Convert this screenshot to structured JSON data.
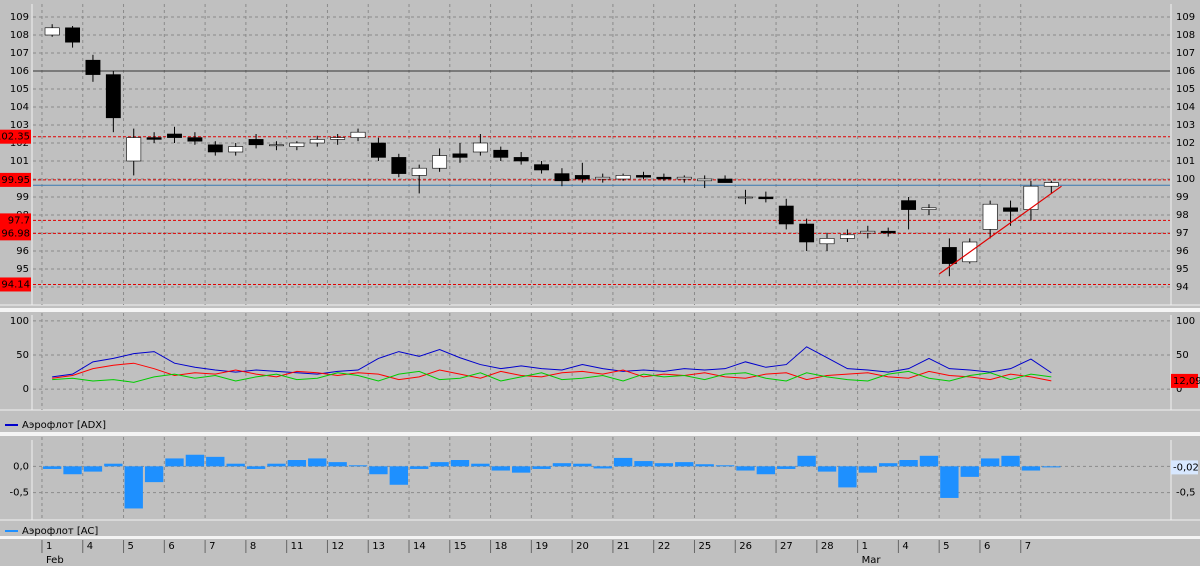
{
  "x": [
    0.25,
    0.75,
    1.25,
    1.75,
    2.25,
    2.75,
    3.25,
    3.75,
    4.25,
    4.75,
    5.25,
    5.75,
    6.25,
    6.75,
    7.25,
    7.75,
    8.25,
    8.75,
    9.25,
    9.75,
    10.25,
    10.75,
    11.25,
    11.75,
    12.25,
    12.75,
    13.25,
    13.75,
    14.25,
    14.75,
    15.25,
    15.75,
    16.25,
    16.75,
    17.25,
    17.75,
    18.25,
    18.75,
    19.25,
    19.75,
    20.25,
    20.75,
    21.25,
    21.75,
    22.25,
    22.75,
    23.25,
    23.75,
    24.25,
    24.75
  ],
  "x_axis": {
    "xlim": [
      -0.22,
      27.66
    ],
    "xticks": [
      {
        "value": 0,
        "label": "1"
      },
      {
        "value": 1,
        "label": "4"
      },
      {
        "value": 2,
        "label": "5"
      },
      {
        "value": 3,
        "label": "6"
      },
      {
        "value": 4,
        "label": "7"
      },
      {
        "value": 5,
        "label": "8"
      },
      {
        "value": 6,
        "label": "11"
      },
      {
        "value": 7,
        "label": "12"
      },
      {
        "value": 8,
        "label": "13"
      },
      {
        "value": 9,
        "label": "14"
      },
      {
        "value": 10,
        "label": "15"
      },
      {
        "value": 11,
        "label": "18"
      },
      {
        "value": 12,
        "label": "19"
      },
      {
        "value": 13,
        "label": "20"
      },
      {
        "value": 14,
        "label": "21"
      },
      {
        "value": 15,
        "label": "22"
      },
      {
        "value": 16,
        "label": "25"
      },
      {
        "value": 17,
        "label": "26"
      },
      {
        "value": 18,
        "label": "27"
      },
      {
        "value": 19,
        "label": "28"
      },
      {
        "value": 20,
        "label": "1"
      },
      {
        "value": 21,
        "label": "4"
      },
      {
        "value": 22,
        "label": "5"
      },
      {
        "value": 23,
        "label": "6"
      },
      {
        "value": 24,
        "label": "7"
      }
    ],
    "months": [
      {
        "value": 0,
        "label": "Feb"
      },
      {
        "value": 20,
        "label": "Mar"
      }
    ]
  },
  "chart_data": [
    {
      "type": "candlestick",
      "ylim": [
        93.5,
        109.5
      ],
      "yticks": [
        94,
        95,
        96,
        97,
        98,
        99,
        100,
        101,
        102,
        103,
        104,
        105,
        106,
        107,
        108,
        109
      ],
      "grid": true,
      "up_color": "#ffffff",
      "down_color": "#000000",
      "open": [
        108.0,
        108.4,
        106.6,
        105.8,
        101.0,
        102.3,
        102.5,
        102.3,
        101.9,
        101.5,
        102.2,
        101.9,
        101.8,
        102.0,
        102.2,
        102.3,
        102.0,
        101.2,
        100.2,
        100.6,
        101.4,
        101.5,
        101.6,
        101.2,
        100.8,
        100.3,
        100.2,
        100.0,
        100.0,
        100.2,
        100.1,
        100.0,
        99.9,
        100.0,
        99.0,
        99.0,
        98.5,
        97.5,
        96.4,
        96.7,
        97.0,
        97.1,
        98.8,
        98.3,
        96.2,
        95.4,
        97.2,
        98.4,
        98.3,
        99.6
      ],
      "high": [
        108.6,
        108.5,
        106.9,
        106.0,
        102.8,
        102.6,
        102.9,
        102.6,
        102.1,
        102.0,
        102.5,
        102.1,
        102.1,
        102.4,
        102.5,
        102.8,
        102.3,
        101.4,
        100.8,
        101.7,
        102.0,
        102.5,
        101.8,
        101.5,
        101.0,
        100.6,
        100.9,
        100.3,
        100.3,
        100.4,
        100.3,
        100.2,
        100.2,
        100.2,
        99.4,
        99.3,
        98.9,
        97.8,
        97.0,
        97.2,
        97.4,
        97.3,
        99.0,
        98.6,
        96.7,
        96.7,
        98.8,
        98.8,
        99.9,
        99.9
      ],
      "low": [
        107.9,
        107.3,
        105.4,
        102.6,
        100.2,
        102.0,
        102.0,
        101.9,
        101.3,
        101.3,
        101.7,
        101.6,
        101.6,
        101.8,
        101.9,
        102.1,
        101.0,
        100.1,
        99.2,
        100.4,
        100.9,
        101.3,
        101.0,
        100.8,
        100.3,
        99.6,
        99.8,
        99.8,
        99.9,
        100.0,
        99.9,
        99.8,
        99.5,
        99.8,
        98.6,
        98.7,
        97.2,
        96.0,
        96.0,
        96.5,
        96.7,
        96.8,
        97.2,
        98.0,
        94.6,
        95.3,
        96.7,
        97.4,
        97.7,
        99.2
      ],
      "close": [
        108.4,
        107.6,
        105.8,
        103.4,
        102.3,
        102.2,
        102.3,
        102.1,
        101.5,
        101.8,
        101.9,
        101.9,
        102.0,
        102.2,
        102.3,
        102.6,
        101.2,
        100.3,
        100.6,
        101.3,
        101.2,
        102.0,
        101.2,
        101.0,
        100.5,
        99.9,
        100.0,
        100.1,
        100.2,
        100.1,
        100.0,
        100.1,
        100.0,
        99.8,
        99.0,
        98.9,
        97.5,
        96.5,
        96.7,
        96.9,
        97.1,
        97.0,
        98.3,
        98.4,
        95.3,
        96.5,
        98.6,
        98.2,
        99.6,
        99.8
      ],
      "hlines": [
        {
          "value": 106,
          "color": "#333333"
        },
        {
          "value": 99.65,
          "color": "#3a78b0"
        },
        {
          "value": 102.35,
          "color": "#e00000",
          "dashed": true
        },
        {
          "value": 99.95,
          "color": "#e00000",
          "dashed": true
        },
        {
          "value": 97.7,
          "color": "#e00000",
          "dashed": true
        },
        {
          "value": 96.98,
          "color": "#e00000",
          "dashed": true
        },
        {
          "value": 94.14,
          "color": "#e00000",
          "dashed": true
        }
      ],
      "trendline": {
        "x": [
          22.0,
          25.0
        ],
        "y": [
          94.72,
          99.6
        ],
        "color": "#e00000"
      }
    },
    {
      "type": "line",
      "ylim": [
        -10,
        110
      ],
      "yticks": [
        0,
        50,
        100
      ],
      "grid": true,
      "series": [
        {
          "name": "Аэрофлот [ADX]",
          "color": "#0000cc",
          "values": [
            18,
            22,
            40,
            45,
            52,
            55,
            38,
            32,
            28,
            25,
            28,
            26,
            24,
            22,
            26,
            28,
            45,
            55,
            48,
            58,
            46,
            36,
            30,
            34,
            30,
            28,
            36,
            30,
            26,
            28,
            26,
            30,
            28,
            30,
            40,
            32,
            36,
            62,
            46,
            30,
            28,
            25,
            30,
            45,
            30,
            28,
            25,
            30,
            44,
            24
          ]
        },
        {
          "color": "#ff0000",
          "values": [
            16,
            20,
            30,
            35,
            38,
            30,
            20,
            24,
            22,
            28,
            22,
            18,
            26,
            24,
            20,
            24,
            22,
            14,
            18,
            28,
            22,
            16,
            26,
            20,
            18,
            24,
            26,
            22,
            28,
            18,
            22,
            20,
            24,
            18,
            16,
            22,
            24,
            14,
            20,
            22,
            24,
            18,
            16,
            26,
            20,
            18,
            14,
            22,
            18,
            12.09
          ]
        },
        {
          "color": "#00cc00",
          "values": [
            14,
            16,
            12,
            14,
            10,
            18,
            22,
            16,
            20,
            12,
            18,
            22,
            14,
            16,
            24,
            20,
            12,
            22,
            26,
            14,
            16,
            24,
            12,
            18,
            24,
            14,
            16,
            20,
            12,
            22,
            18,
            20,
            14,
            22,
            24,
            16,
            12,
            24,
            18,
            14,
            12,
            22,
            26,
            16,
            12,
            20,
            24,
            14,
            22,
            18
          ]
        }
      ],
      "last_value": 12.09,
      "last_label": "12,09",
      "last_color": "#ff0000"
    },
    {
      "type": "bar",
      "ylim": [
        -1,
        0.5
      ],
      "yticks": [
        {
          "value": 0,
          "label": "0,0"
        },
        {
          "value": -0.5,
          "label": "-0,5"
        }
      ],
      "grid": true,
      "series": [
        {
          "name": "Аэрофлот [AC]",
          "color": "#1e90ff",
          "values": [
            -0.05,
            -0.15,
            -0.1,
            0.05,
            -0.8,
            -0.3,
            0.15,
            0.22,
            0.18,
            0.05,
            -0.05,
            0.05,
            0.12,
            0.15,
            0.08,
            0.02,
            -0.15,
            -0.35,
            -0.05,
            0.08,
            0.12,
            0.05,
            -0.08,
            -0.12,
            -0.05,
            0.06,
            0.05,
            -0.04,
            0.16,
            0.1,
            0.06,
            0.08,
            0.04,
            0.02,
            -0.08,
            -0.15,
            -0.05,
            0.2,
            -0.1,
            -0.4,
            -0.12,
            0.06,
            0.12,
            0.2,
            -0.6,
            -0.2,
            0.15,
            0.2,
            -0.08,
            -0.02
          ]
        }
      ],
      "last_value": -0.02,
      "last_label": "-0,02",
      "last_color": "#d8e8ff"
    }
  ]
}
